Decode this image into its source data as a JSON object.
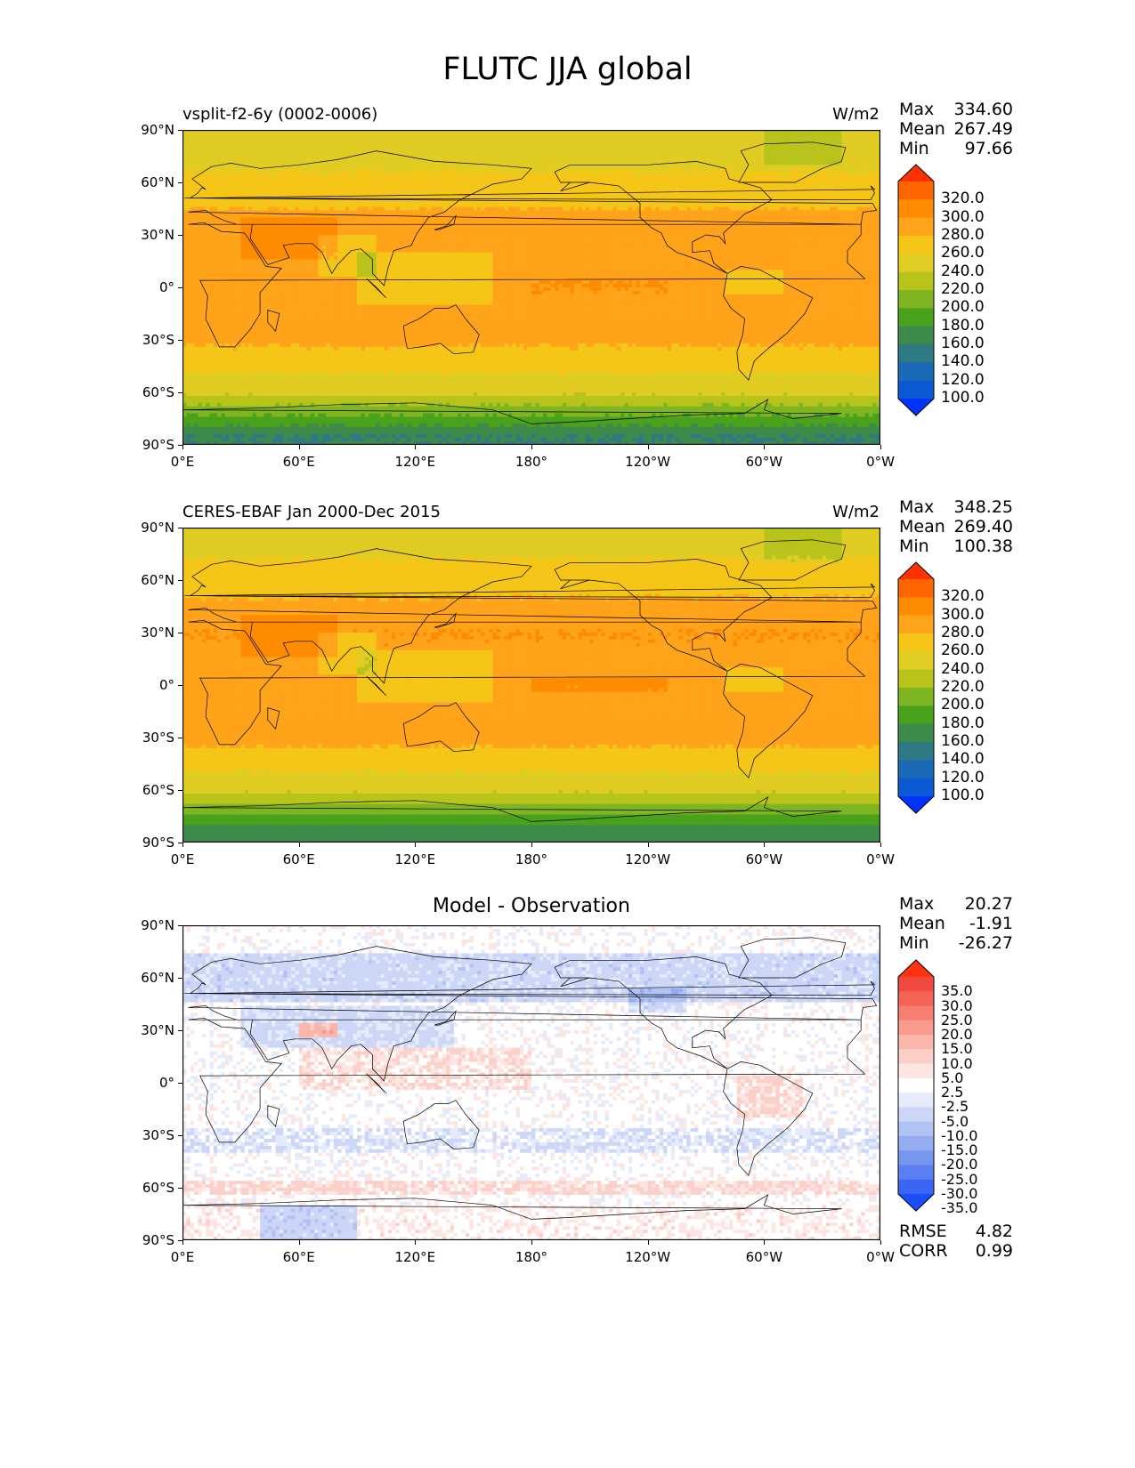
{
  "title": "FLUTC JJA global",
  "panels": [
    {
      "id": "model",
      "title": "vsplit-f2-6y (0002-0006)",
      "title_align": "left",
      "units": "W/m2",
      "stats": [
        {
          "label": "Max",
          "value": "334.60"
        },
        {
          "label": "Mean",
          "value": "267.49"
        },
        {
          "label": "Min",
          "value": "97.66"
        }
      ]
    },
    {
      "id": "obs",
      "title": "CERES-EBAF Jan 2000-Dec 2015",
      "title_align": "left",
      "units": "W/m2",
      "stats": [
        {
          "label": "Max",
          "value": "348.25"
        },
        {
          "label": "Mean",
          "value": "269.40"
        },
        {
          "label": "Min",
          "value": "100.38"
        }
      ]
    },
    {
      "id": "diff",
      "title": "Model - Observation",
      "title_align": "center",
      "units": "",
      "stats": [
        {
          "label": "Max",
          "value": "20.27"
        },
        {
          "label": "Mean",
          "value": "-1.91"
        },
        {
          "label": "Min",
          "value": "-26.27"
        }
      ],
      "extra_stats": [
        {
          "label": "RMSE",
          "value": "4.82"
        },
        {
          "label": "CORR",
          "value": "0.99"
        }
      ]
    }
  ],
  "chart_data": {
    "type": "heatmap",
    "projection": "equirectangular, central longitude 180",
    "xticks": [
      "0°E",
      "60°E",
      "120°E",
      "180°",
      "120°W",
      "60°W",
      "0°W"
    ],
    "yticks": [
      "90°N",
      "60°N",
      "30°N",
      "0°",
      "30°S",
      "60°S",
      "90°S"
    ],
    "abs_levels": [
      "320.0",
      "300.0",
      "280.0",
      "260.0",
      "240.0",
      "220.0",
      "200.0",
      "180.0",
      "160.0",
      "140.0",
      "120.0",
      "100.0"
    ],
    "abs_colors": [
      "#ff3300",
      "#ff6600",
      "#ff8c00",
      "#ffa31a",
      "#f5c518",
      "#e0cc22",
      "#b8c41c",
      "#7fb520",
      "#4aa21c",
      "#3e8a4a",
      "#2e7a84",
      "#1a6ab8",
      "#0b5ad4",
      "#0033ff"
    ],
    "diff_levels": [
      "35.0",
      "30.0",
      "25.0",
      "20.0",
      "15.0",
      "10.0",
      "5.0",
      "2.5",
      "-2.5",
      "-5.0",
      "-10.0",
      "-15.0",
      "-20.0",
      "-25.0",
      "-30.0",
      "-35.0"
    ],
    "diff_colors": [
      "#ff3311",
      "#f04a40",
      "#f56356",
      "#f77e72",
      "#f99a8f",
      "#fbb6ac",
      "#fcd0c9",
      "#fde6e2",
      "#ffffff",
      "#e6ebfb",
      "#ccd6f7",
      "#b1c2f4",
      "#95acf0",
      "#7896ee",
      "#5b7ff0",
      "#3b66f4",
      "#1a4dfb"
    ],
    "model_zonal_W_m2": {
      "lat": [
        85,
        60,
        30,
        0,
        -30,
        -60,
        -85
      ],
      "value": [
        225,
        245,
        275,
        270,
        265,
        225,
        140
      ]
    },
    "obs_zonal_W_m2": {
      "lat": [
        85,
        60,
        30,
        0,
        -30,
        -60,
        -85
      ],
      "value": [
        230,
        250,
        280,
        272,
        268,
        225,
        145
      ]
    }
  }
}
